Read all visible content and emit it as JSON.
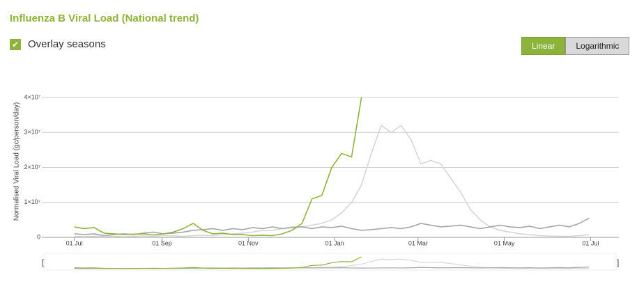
{
  "ui": {
    "overlay_label": "Overlay seasons",
    "buttons": [
      "Linear",
      "Logarithmic"
    ],
    "active_button": "Linear"
  },
  "chart_data": {
    "type": "line",
    "title": "Influenza B Viral Load (National trend)",
    "ylabel": "Normalised Viral Load (gc/person/day)",
    "log_scale": false,
    "grid": true,
    "x": [
      0,
      7,
      14,
      21,
      28,
      35,
      42,
      49,
      56,
      63,
      70,
      77,
      84,
      91,
      98,
      105,
      112,
      119,
      126,
      133,
      140,
      147,
      154,
      161,
      168,
      175,
      182,
      189,
      196,
      203,
      210,
      217,
      224,
      231,
      238,
      245,
      252,
      259,
      266,
      273,
      280,
      287,
      294,
      301,
      308,
      315,
      322,
      329,
      336,
      343,
      350,
      357,
      364
    ],
    "xlim": [
      -23,
      385
    ],
    "xticks": [
      {
        "value": 0,
        "label": "01 Jul"
      },
      {
        "value": 62,
        "label": "01 Sep"
      },
      {
        "value": 123,
        "label": "01 Nov"
      },
      {
        "value": 184,
        "label": "01 Jan"
      },
      {
        "value": 243,
        "label": "01 Mar"
      },
      {
        "value": 304,
        "label": "01 May"
      },
      {
        "value": 365,
        "label": "01 Jul"
      }
    ],
    "ylim": [
      0,
      42000000
    ],
    "yticks": [
      0,
      {
        "value": 10000000,
        "label": "1×10⁷"
      },
      {
        "value": 20000000,
        "label": "2×10⁷"
      },
      {
        "value": 30000000,
        "label": "3×10⁷"
      },
      {
        "value": 40000000,
        "label": "4×10⁷"
      }
    ],
    "series": [
      {
        "color": "#d6d6d6",
        "values": [
          300000.0,
          200000.0,
          300000.0,
          400000.0,
          300000.0,
          200000.0,
          300000.0,
          400000.0,
          300000.0,
          500000.0,
          400000.0,
          300000.0,
          500000.0,
          600000.0,
          500000.0,
          800000.0,
          1000000.0,
          1200000.0,
          1500000.0,
          2000000.0,
          2000000.0,
          2500000.0,
          3000000.0,
          3000000.0,
          3500000.0,
          4000000.0,
          5000000.0,
          7000000.0,
          10000000.0,
          15000000.0,
          24000000.0,
          32000000.0,
          30000000.0,
          32000000.0,
          28000000.0,
          21000000.0,
          22000000.0,
          21000000.0,
          17000000.0,
          13000000.0,
          8000000.0,
          5000000.0,
          3000000.0,
          2000000.0,
          1500000.0,
          1000000.0,
          800000.0,
          500000.0,
          400000.0,
          300000.0,
          300000.0,
          500000.0,
          800000.0
        ]
      },
      {
        "color": "#a6a6a6",
        "values": [
          1000000.0,
          800000.0,
          1000000.0,
          500000.0,
          800000.0,
          1000000.0,
          800000.0,
          1200000.0,
          1500000.0,
          1000000.0,
          1200000.0,
          1500000.0,
          2000000.0,
          2200000.0,
          2500000.0,
          2000000.0,
          2500000.0,
          2200000.0,
          2800000.0,
          2500000.0,
          3000000.0,
          2500000.0,
          2800000.0,
          3000000.0,
          2500000.0,
          3000000.0,
          2800000.0,
          3200000.0,
          2500000.0,
          2000000.0,
          2200000.0,
          2500000.0,
          2800000.0,
          2500000.0,
          3000000.0,
          4000000.0,
          3500000.0,
          3000000.0,
          3200000.0,
          3500000.0,
          3000000.0,
          2500000.0,
          3000000.0,
          3500000.0,
          3000000.0,
          2800000.0,
          3200000.0,
          2500000.0,
          3000000.0,
          3500000.0,
          3000000.0,
          4000000.0,
          5500000.0
        ]
      },
      {
        "color": "#8db33a",
        "values": [
          3000000.0,
          2500000.0,
          2800000.0,
          1200000.0,
          1000000.0,
          800000.0,
          900000.0,
          1000000.0,
          700000.0,
          1000000.0,
          1500000.0,
          2500000.0,
          4000000.0,
          2000000.0,
          1000000.0,
          1200000.0,
          800000.0,
          800000.0,
          500000.0,
          600000.0,
          500000.0,
          1000000.0,
          2000000.0,
          4000000.0,
          11000000.0,
          12000000.0,
          20000000.0,
          24000000.0,
          23000000.0,
          40000000.0,
          null,
          null,
          null,
          null,
          null,
          null,
          null,
          null,
          null,
          null,
          null,
          null,
          null,
          null,
          null,
          null,
          null,
          null,
          null,
          null,
          null,
          null,
          null
        ]
      }
    ]
  }
}
